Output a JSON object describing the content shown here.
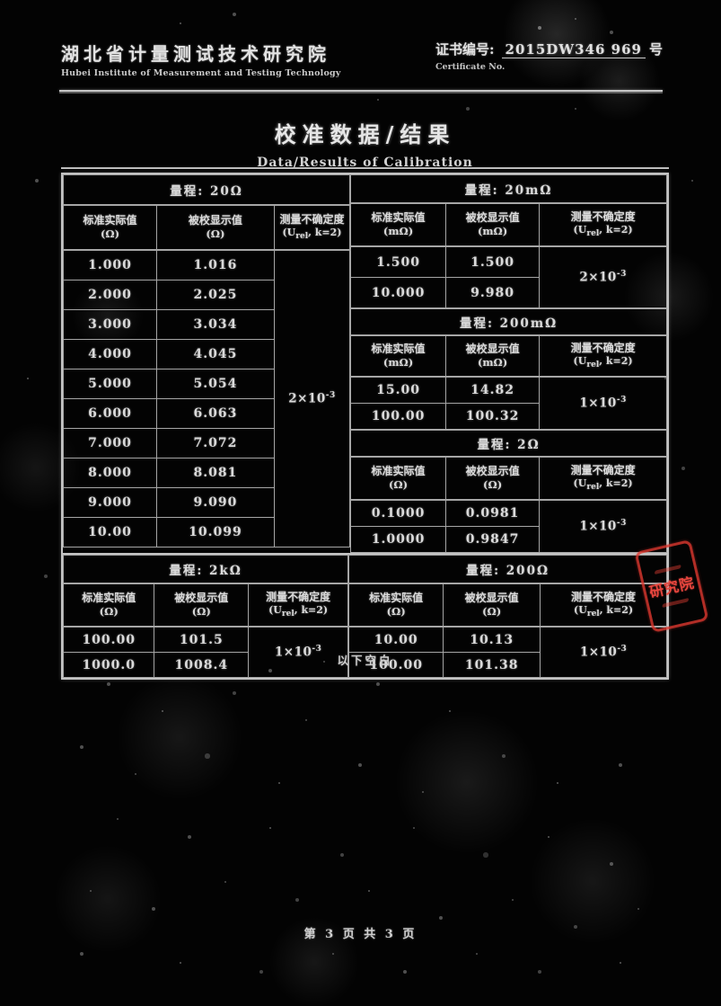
{
  "letterhead": {
    "institute_cn": "湖北省计量测试技术研究院",
    "institute_en": "Hubei Institute of Measurement and Testing Technology",
    "cert_label_cn": "证书编号:",
    "cert_label_en": "Certificate No.",
    "cert_no": "2015DW346 969",
    "cert_suffix": "号"
  },
  "title": {
    "cn": "校准数据/结果",
    "en": "Data/Results of Calibration"
  },
  "col_headers": {
    "std": "标准实际值",
    "disp": "被校显示值",
    "unc": "测量不确定度",
    "unc_open": "(U",
    "unc_sub": "rel",
    "unc_close": ", k=2)"
  },
  "sections": {
    "r20": {
      "band": "量程: 20Ω",
      "unit": "(Ω)",
      "unc": {
        "base": "2×10",
        "exp": "-3"
      },
      "rows": [
        [
          "1.000",
          "1.016"
        ],
        [
          "2.000",
          "2.025"
        ],
        [
          "3.000",
          "3.034"
        ],
        [
          "4.000",
          "4.045"
        ],
        [
          "5.000",
          "5.054"
        ],
        [
          "6.000",
          "6.063"
        ],
        [
          "7.000",
          "7.072"
        ],
        [
          "8.000",
          "8.081"
        ],
        [
          "9.000",
          "9.090"
        ],
        [
          "10.00",
          "10.099"
        ]
      ]
    },
    "r20m": {
      "band": "量程: 20mΩ",
      "unit": "(mΩ)",
      "unc": {
        "base": "2×10",
        "exp": "-3"
      },
      "rows": [
        [
          "1.500",
          "1.500"
        ],
        [
          "10.000",
          "9.980"
        ]
      ]
    },
    "r200m": {
      "band": "量程: 200mΩ",
      "unit": "(mΩ)",
      "unc": {
        "base": "1×10",
        "exp": "-3"
      },
      "rows": [
        [
          "15.00",
          "14.82"
        ],
        [
          "100.00",
          "100.32"
        ]
      ]
    },
    "r2": {
      "band": "量程: 2Ω",
      "unit": "(Ω)",
      "unc": {
        "base": "1×10",
        "exp": "-3"
      },
      "rows": [
        [
          "0.1000",
          "0.0981"
        ],
        [
          "1.0000",
          "0.9847"
        ]
      ]
    },
    "r2k": {
      "band": "量程: 2kΩ",
      "unit": "(Ω)",
      "unc": {
        "base": "1×10",
        "exp": "-3"
      },
      "rows": [
        [
          "100.00",
          "101.5"
        ],
        [
          "1000.0",
          "1008.4"
        ]
      ]
    },
    "r200": {
      "band": "量程: 200Ω",
      "unit": "(Ω)",
      "unc": {
        "base": "1×10",
        "exp": "-3"
      },
      "rows": [
        [
          "10.00",
          "10.13"
        ],
        [
          "100.00",
          "101.38"
        ]
      ]
    }
  },
  "notes": {
    "below_table": "以下空白",
    "page_footer": "第 3 页 共 3 页"
  },
  "stamp": {
    "text": "研究院",
    "color": "#e8463e"
  }
}
